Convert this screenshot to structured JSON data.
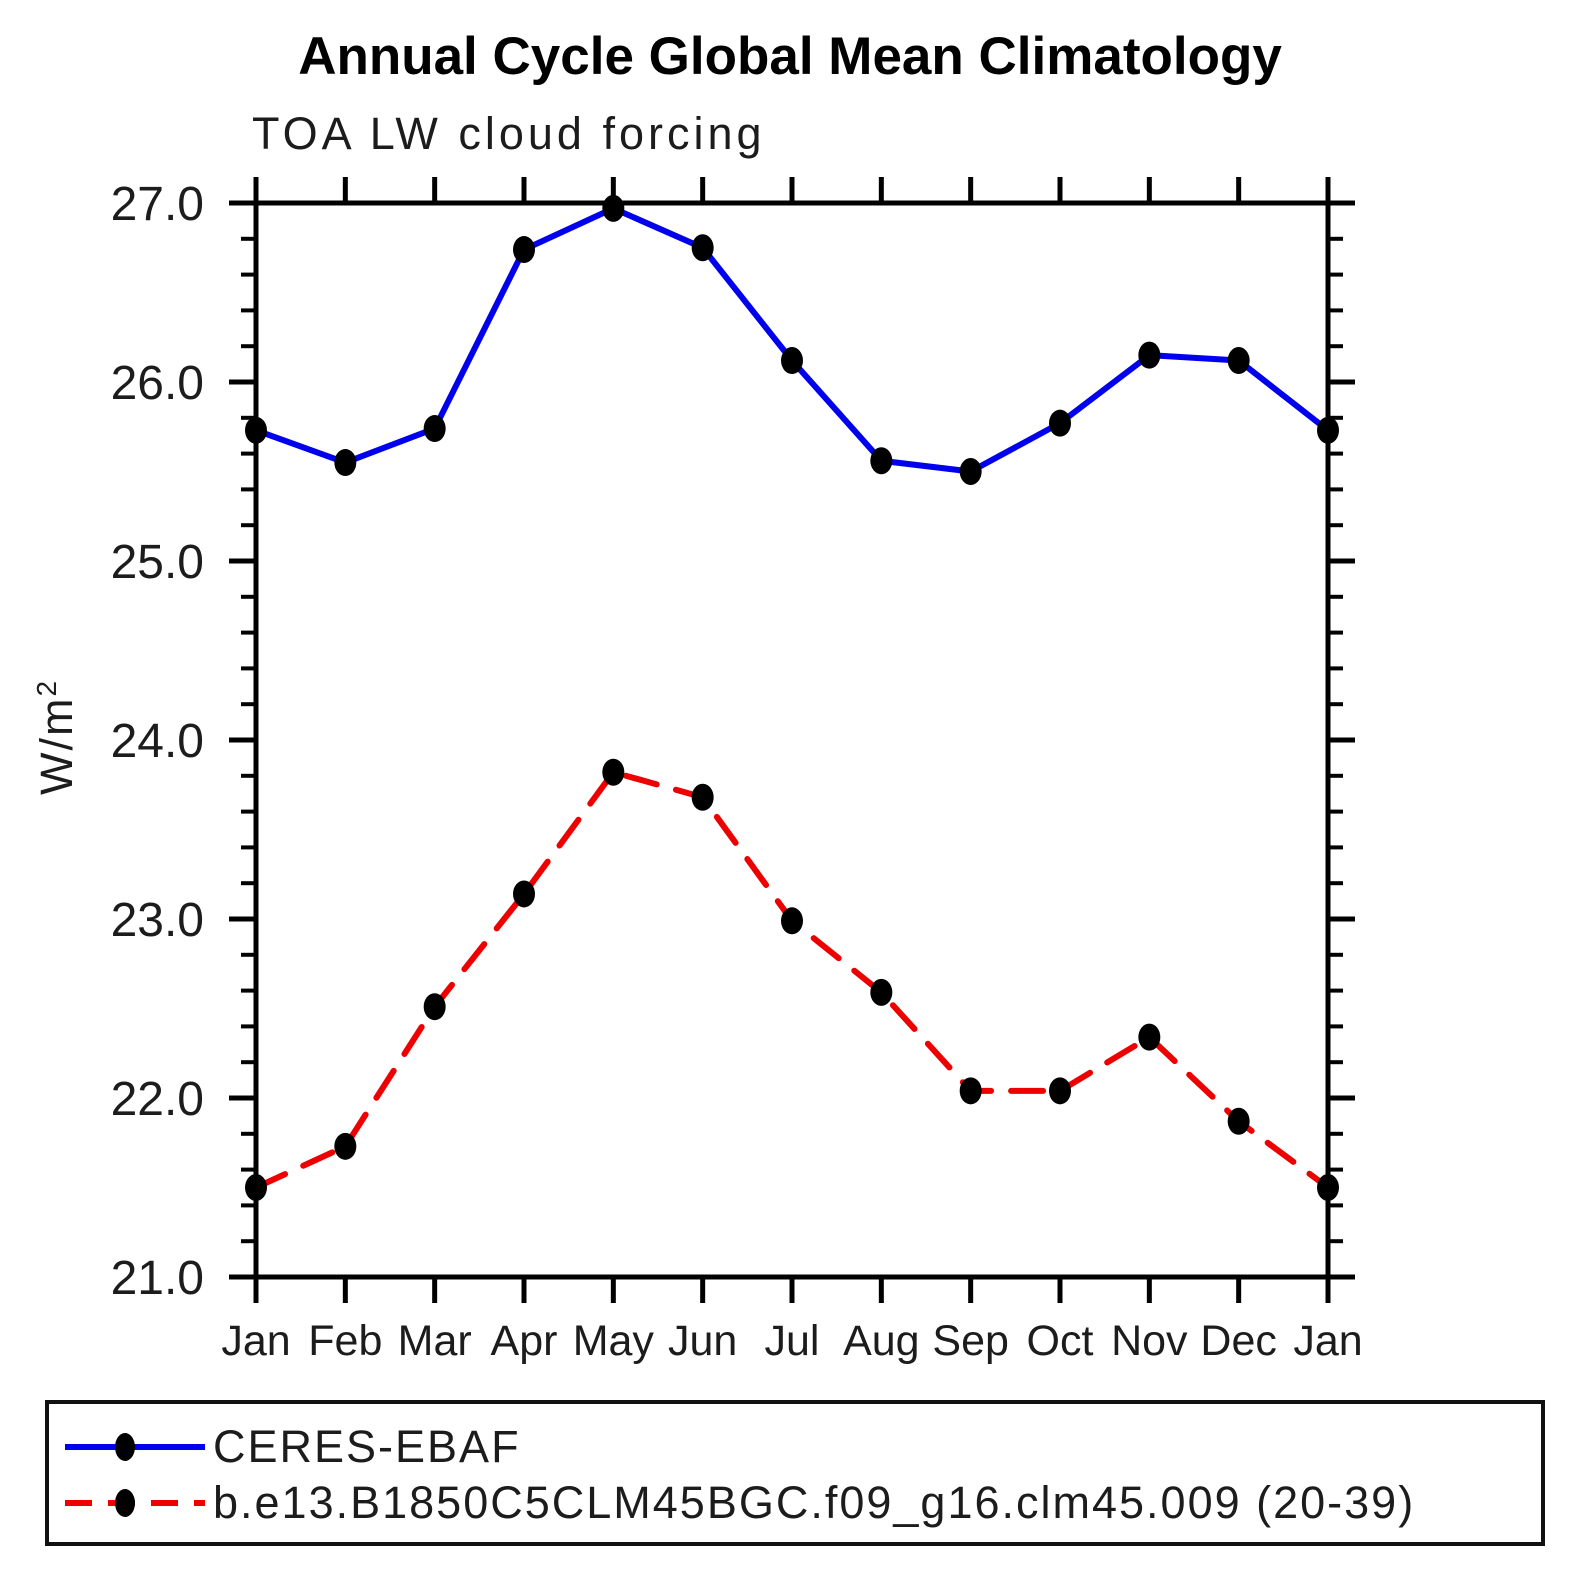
{
  "chart_data": {
    "type": "line",
    "title": "Annual Cycle Global Mean Climatology",
    "subtitle": "TOA LW cloud forcing",
    "xlabel": "",
    "ylabel": "W/m2",
    "ylabel_base": "W/m",
    "ylabel_sup": "2",
    "categories": [
      "Jan",
      "Feb",
      "Mar",
      "Apr",
      "May",
      "Jun",
      "Jul",
      "Aug",
      "Sep",
      "Oct",
      "Nov",
      "Dec",
      "Jan"
    ],
    "series": [
      {
        "name": "CERES-EBAF",
        "color": "#0000ee",
        "line_style": "solid",
        "values": [
          25.73,
          25.55,
          25.74,
          26.74,
          26.97,
          26.75,
          26.12,
          25.56,
          25.5,
          25.77,
          26.15,
          26.12,
          25.73
        ]
      },
      {
        "name": "b.e13.B1850C5CLM45BGC.f09_g16.clm45.009 (20-39)",
        "color": "#ee0000",
        "line_style": "dashed",
        "values": [
          21.5,
          21.73,
          22.51,
          23.14,
          23.82,
          23.68,
          22.99,
          22.59,
          22.04,
          22.04,
          22.34,
          21.87,
          21.5
        ]
      }
    ],
    "marker": {
      "shape": "filled-circle",
      "color": "#000000"
    },
    "ylim": [
      21.0,
      27.0
    ],
    "yticks": [
      "27.0",
      "26.0",
      "25.0",
      "24.0",
      "23.0",
      "22.0",
      "21.0"
    ],
    "ytick_minor_interval": 0.2,
    "grid": "off",
    "legend_position": "bottom-left-box"
  }
}
